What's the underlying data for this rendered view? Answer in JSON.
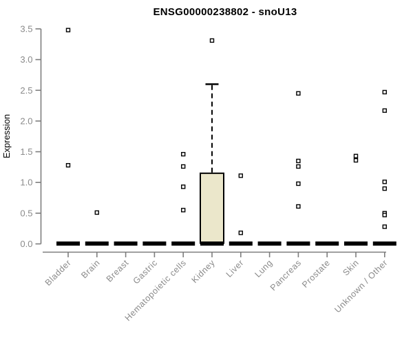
{
  "chart_data": {
    "type": "boxplot",
    "title": "ENSG00000238802 - snoU13",
    "ylabel": "Expression",
    "xlabel": "",
    "ylim": [
      0,
      3.5
    ],
    "yticks": [
      0,
      0.5,
      1,
      1.5,
      2,
      2.5,
      3,
      3.5
    ],
    "ytick_labels": [
      "0.0",
      "0.5",
      "1.0",
      "1.5",
      "2.0",
      "2.5",
      "3.0",
      "3.5"
    ],
    "categories": [
      "Bladder",
      "Brain",
      "Breast",
      "Gastric",
      "Hematopoietic cells",
      "Kidney",
      "Liver",
      "Lung",
      "Pancreas",
      "Prostate",
      "Skin",
      "Unknown / Other"
    ],
    "boxes": [
      {
        "category": "Bladder",
        "q1": 0,
        "median": 0,
        "q3": 0,
        "whisker_low": 0,
        "whisker_high": 0,
        "outliers": [
          3.48,
          1.28
        ]
      },
      {
        "category": "Brain",
        "q1": 0,
        "median": 0,
        "q3": 0,
        "whisker_low": 0,
        "whisker_high": 0,
        "outliers": [
          0.51
        ]
      },
      {
        "category": "Breast",
        "q1": 0,
        "median": 0,
        "q3": 0,
        "whisker_low": 0,
        "whisker_high": 0,
        "outliers": []
      },
      {
        "category": "Gastric",
        "q1": 0,
        "median": 0,
        "q3": 0,
        "whisker_low": 0,
        "whisker_high": 0,
        "outliers": []
      },
      {
        "category": "Hematopoietic cells",
        "q1": 0,
        "median": 0,
        "q3": 0,
        "whisker_low": 0,
        "whisker_high": 0,
        "outliers": [
          1.46,
          1.26,
          0.93,
          0.55
        ]
      },
      {
        "category": "Kidney",
        "q1": 0,
        "median": 0,
        "q3": 1.15,
        "whisker_low": 0,
        "whisker_high": 2.6,
        "outliers": [
          3.31
        ]
      },
      {
        "category": "Liver",
        "q1": 0,
        "median": 0,
        "q3": 0,
        "whisker_low": 0,
        "whisker_high": 0,
        "outliers": [
          1.11,
          0.18
        ]
      },
      {
        "category": "Lung",
        "q1": 0,
        "median": 0,
        "q3": 0,
        "whisker_low": 0,
        "whisker_high": 0,
        "outliers": []
      },
      {
        "category": "Pancreas",
        "q1": 0,
        "median": 0,
        "q3": 0,
        "whisker_low": 0,
        "whisker_high": 0,
        "outliers": [
          2.45,
          1.35,
          1.26,
          0.98,
          0.61
        ]
      },
      {
        "category": "Prostate",
        "q1": 0,
        "median": 0,
        "q3": 0,
        "whisker_low": 0,
        "whisker_high": 0,
        "outliers": []
      },
      {
        "category": "Skin",
        "q1": 0,
        "median": 0,
        "q3": 0,
        "whisker_low": 0,
        "whisker_high": 0,
        "outliers": [
          1.43,
          1.36
        ]
      },
      {
        "category": "Unknown / Other",
        "q1": 0,
        "median": 0,
        "q3": 0,
        "whisker_low": 0,
        "whisker_high": 0,
        "outliers": [
          2.47,
          2.17,
          1.01,
          0.9,
          0.5,
          0.47,
          0.28
        ]
      }
    ],
    "marker": "open-square",
    "grid": false,
    "legend": false,
    "style": {
      "background": "#ffffff",
      "box_fill": "#EBE7CB",
      "box_stroke": "#000000",
      "median_color": "#000000",
      "whisker_color": "#000000",
      "outlier_color": "#000000",
      "axis_color": "#7d7d7d",
      "label_color": "#8a8a8a",
      "title_color": "#000000"
    }
  }
}
